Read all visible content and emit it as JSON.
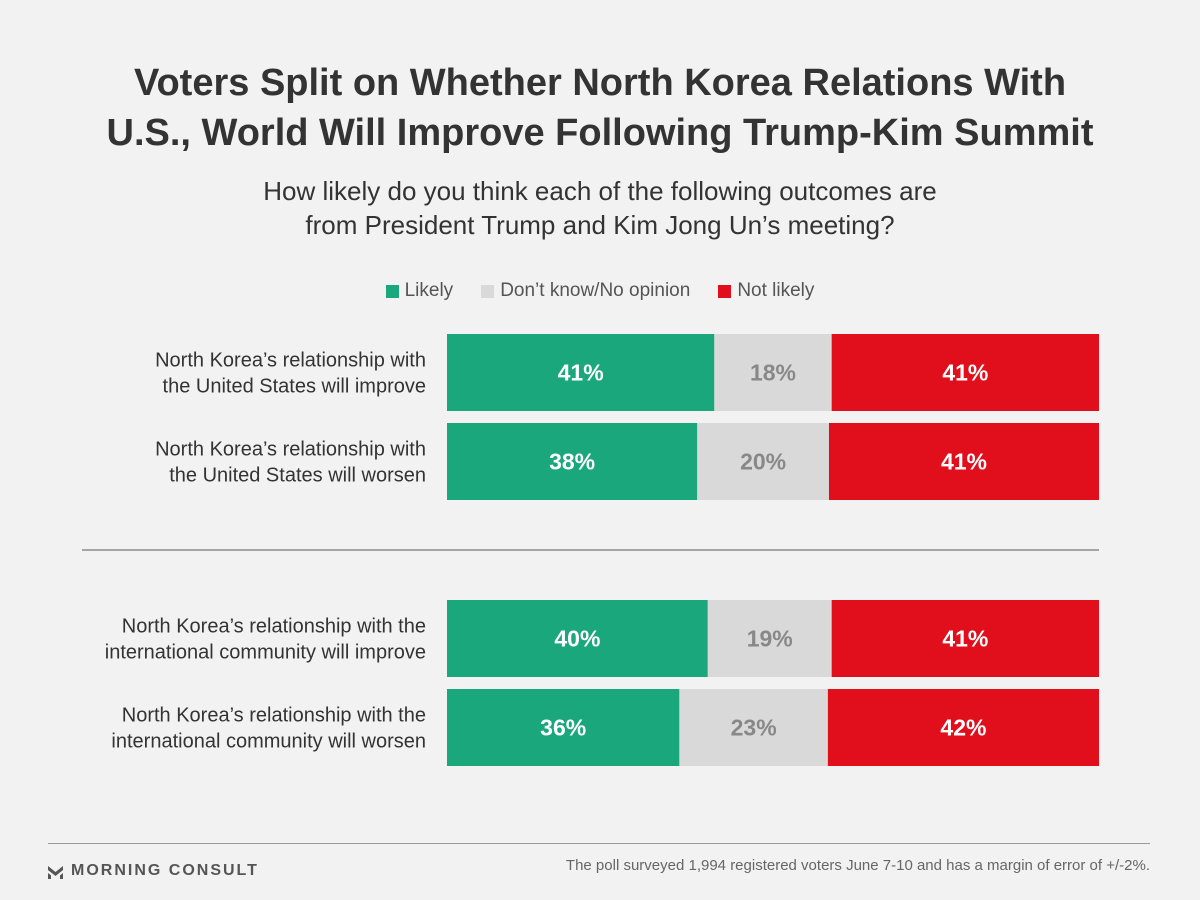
{
  "title_lines": [
    "Voters Split on Whether North Korea Relations With",
    "U.S., World Will Improve Following Trump-Kim Summit"
  ],
  "subtitle_lines": [
    "How likely do you think each of the following outcomes are",
    "from President Trump and Kim Jong Un’s meeting?"
  ],
  "colors": {
    "likely": "#1ba77c",
    "dont_know": "#d9d9d9",
    "not_likely": "#e10e1b",
    "label_light": "#ffffff",
    "label_dark": "#888888",
    "divider": "#555555"
  },
  "footer": {
    "brand": "MORNING CONSULT",
    "note": "The poll surveyed 1,994 registered voters June 7-10 and has a margin of error of +/-2%."
  },
  "chart_data": {
    "type": "bar",
    "orientation": "horizontal",
    "stacked": true,
    "legend": {
      "placement": "top-center",
      "entries": [
        "Likely",
        "Don’t know/No opinion",
        "Not likely"
      ]
    },
    "categories": [
      [
        "North Korea’s relationship with",
        "the United States will improve"
      ],
      [
        "North Korea’s relationship with",
        "the United States will worsen"
      ],
      [
        "North Korea’s relationship with the",
        "international community will improve"
      ],
      [
        "North Korea’s relationship with the",
        "international community will worsen"
      ]
    ],
    "series": [
      {
        "name": "Likely",
        "values": [
          41,
          38,
          40,
          36
        ],
        "labels": [
          "41%",
          "38%",
          "40%",
          "36%"
        ]
      },
      {
        "name": "Don’t know/No opinion",
        "values": [
          18,
          20,
          19,
          23
        ],
        "labels": [
          "18%",
          "20%",
          "19%",
          "23%"
        ]
      },
      {
        "name": "Not likely",
        "values": [
          41,
          41,
          41,
          42
        ],
        "labels": [
          "41%",
          "41%",
          "41%",
          "42%"
        ]
      }
    ],
    "groups": [
      [
        0,
        1
      ],
      [
        2,
        3
      ]
    ],
    "grid": false,
    "xlim": [
      0,
      100
    ]
  }
}
